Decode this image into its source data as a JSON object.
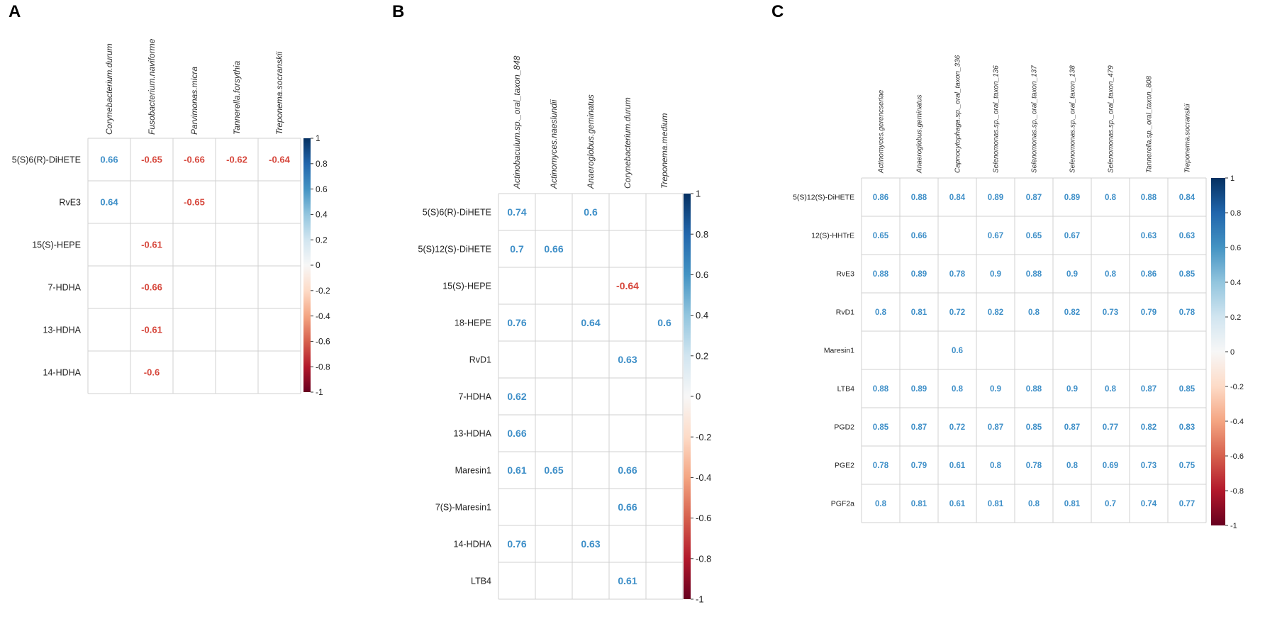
{
  "colors": {
    "negative": "#d6473c",
    "positive": "#3e8fc8",
    "grid": "#d0d0d0"
  },
  "colorbar_ticks": [
    "1",
    "0.8",
    "0.6",
    "0.4",
    "0.2",
    "0",
    "-0.2",
    "-0.4",
    "-0.6",
    "-0.8",
    "-1"
  ],
  "chart_data": [
    {
      "type": "heatmap",
      "panel": "A",
      "title": "A",
      "columns": [
        "Corynebacterium.durum",
        "Fusobacterium.naviforme",
        "Parvimonas.micra",
        "Tannerella.forsythia",
        "Treponema.socranskii"
      ],
      "rows": [
        "5(S)6(R)-DiHETE",
        "RvE3",
        "15(S)-HEPE",
        "7-HDHA",
        "13-HDHA",
        "14-HDHA"
      ],
      "values": [
        [
          0.66,
          -0.65,
          -0.66,
          -0.62,
          -0.64
        ],
        [
          0.64,
          null,
          -0.65,
          null,
          null
        ],
        [
          null,
          -0.61,
          null,
          null,
          null
        ],
        [
          null,
          -0.66,
          null,
          null,
          null
        ],
        [
          null,
          -0.61,
          null,
          null,
          null
        ],
        [
          null,
          -0.6,
          null,
          null,
          null
        ]
      ],
      "colorbar_range": [
        -1,
        1
      ]
    },
    {
      "type": "heatmap",
      "panel": "B",
      "title": "B",
      "columns": [
        "Actinobaculum.sp._oral_taxon_848",
        "Actinomyces.naeslundii",
        "Anaeroglobus.geminatus",
        "Corynebacterium.durum",
        "Treponema.medium"
      ],
      "rows": [
        "5(S)6(R)-DiHETE",
        "5(S)12(S)-DiHETE",
        "15(S)-HEPE",
        "18-HEPE",
        "RvD1",
        "7-HDHA",
        "13-HDHA",
        "Maresin1",
        "7(S)-Maresin1",
        "14-HDHA",
        "LTB4"
      ],
      "values": [
        [
          0.74,
          null,
          0.6,
          null,
          null
        ],
        [
          0.7,
          0.66,
          null,
          null,
          null
        ],
        [
          null,
          null,
          null,
          -0.64,
          null
        ],
        [
          0.76,
          null,
          0.64,
          null,
          0.6
        ],
        [
          null,
          null,
          null,
          0.63,
          null
        ],
        [
          0.62,
          null,
          null,
          null,
          null
        ],
        [
          0.66,
          null,
          null,
          null,
          null
        ],
        [
          0.61,
          0.65,
          null,
          0.66,
          null
        ],
        [
          null,
          null,
          null,
          0.66,
          null
        ],
        [
          0.76,
          null,
          0.63,
          null,
          null
        ],
        [
          null,
          null,
          null,
          0.61,
          null
        ]
      ],
      "colorbar_range": [
        -1,
        1
      ]
    },
    {
      "type": "heatmap",
      "panel": "C",
      "title": "C",
      "columns": [
        "Actinomyces.gerencseriae",
        "Anaeroglobus.geminatus",
        "Capnocytophaga.sp._oral_taxon_336",
        "Selenomonas.sp._oral_taxon_136",
        "Selenomonas.sp._oral_taxon_137",
        "Selenomonas.sp._oral_taxon_138",
        "Selenomonas.sp._oral_taxon_479",
        "Tannerella.sp._oral_taxon_808",
        "Treponema.socranskii"
      ],
      "rows": [
        "5(S)12(S)-DiHETE",
        "12(S)-HHTrE",
        "RvE3",
        "RvD1",
        "Maresin1",
        "LTB4",
        "PGD2",
        "PGE2",
        "PGF2a"
      ],
      "values": [
        [
          0.86,
          0.88,
          0.84,
          0.89,
          0.87,
          0.89,
          0.8,
          0.88,
          0.84
        ],
        [
          0.65,
          0.66,
          null,
          0.67,
          0.65,
          0.67,
          null,
          0.63,
          0.63
        ],
        [
          0.88,
          0.89,
          0.78,
          0.9,
          0.88,
          0.9,
          0.8,
          0.86,
          0.85
        ],
        [
          0.8,
          0.81,
          0.72,
          0.82,
          0.8,
          0.82,
          0.73,
          0.79,
          0.78
        ],
        [
          null,
          null,
          0.6,
          null,
          null,
          null,
          null,
          null,
          null
        ],
        [
          0.88,
          0.89,
          0.8,
          0.9,
          0.88,
          0.9,
          0.8,
          0.87,
          0.85
        ],
        [
          0.85,
          0.87,
          0.72,
          0.87,
          0.85,
          0.87,
          0.77,
          0.82,
          0.83
        ],
        [
          0.78,
          0.79,
          0.61,
          0.8,
          0.78,
          0.8,
          0.69,
          0.73,
          0.75
        ],
        [
          0.8,
          0.81,
          0.61,
          0.81,
          0.8,
          0.81,
          0.7,
          0.74,
          0.77
        ]
      ],
      "colorbar_range": [
        -1,
        1
      ]
    }
  ]
}
